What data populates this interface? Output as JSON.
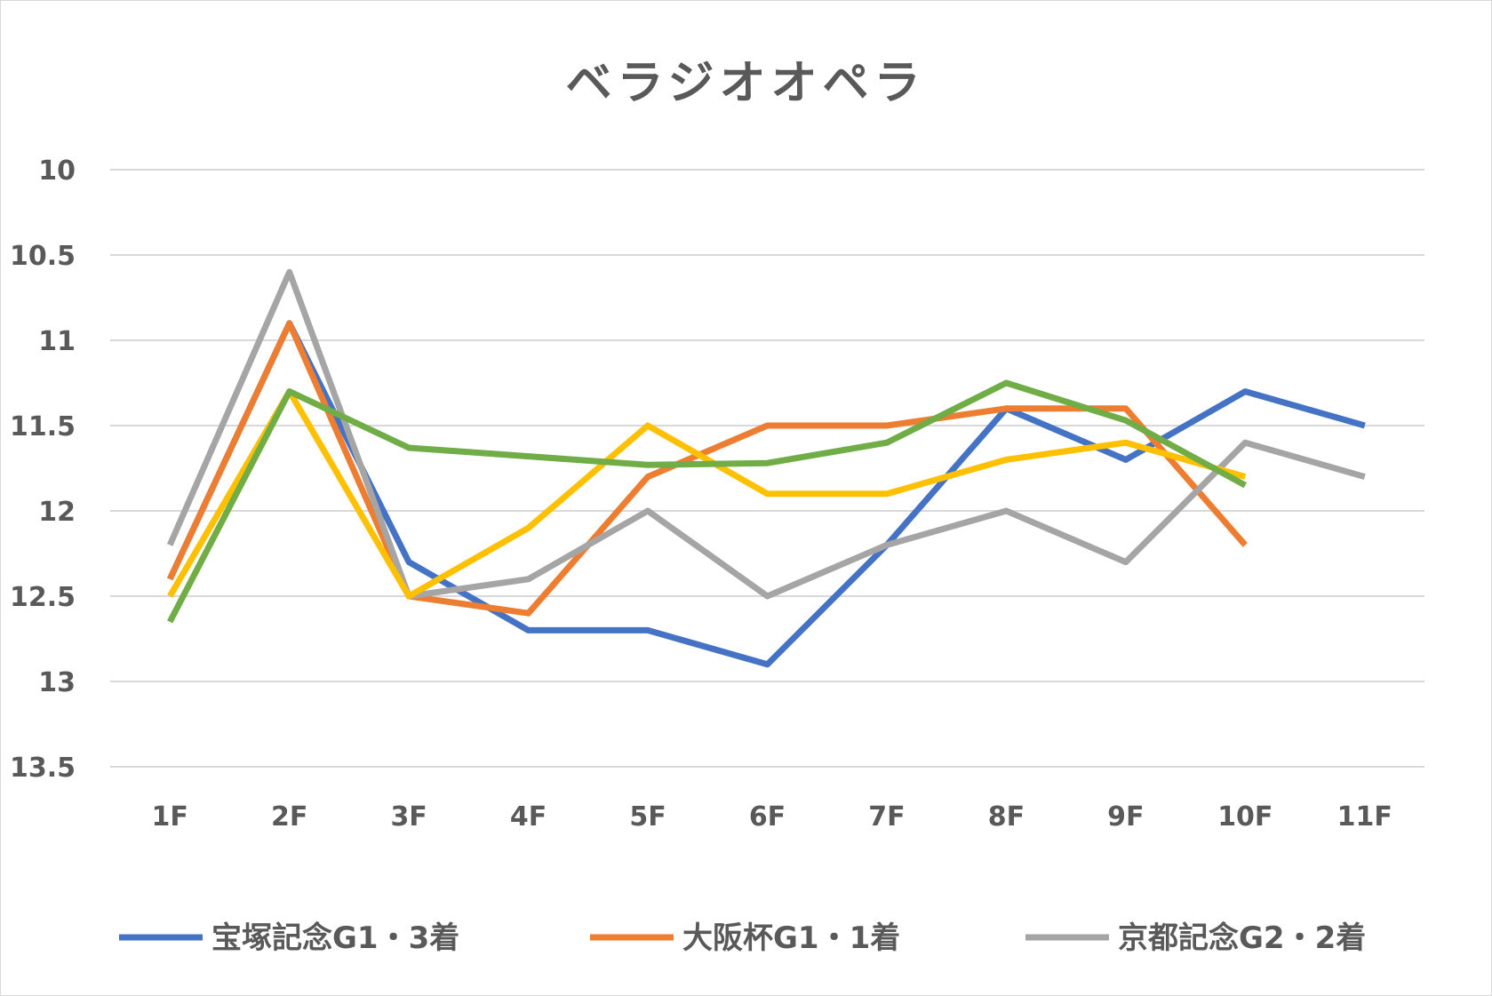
{
  "chart_data": {
    "type": "line",
    "title": "ベラジオオペラ",
    "categories": [
      "1F",
      "2F",
      "3F",
      "4F",
      "5F",
      "6F",
      "7F",
      "8F",
      "9F",
      "10F",
      "11F"
    ],
    "yticks": [
      "10",
      "10.5",
      "11",
      "11.5",
      "12",
      "12.5",
      "13",
      "13.5"
    ],
    "ylim": [
      10,
      13.5
    ],
    "y_inverted": true,
    "grid": true,
    "legend_position": "bottom",
    "series": [
      {
        "name": "宝塚記念G1・3着",
        "color": "#4472C4",
        "in_legend": true,
        "values": [
          12.4,
          10.9,
          12.3,
          12.7,
          12.7,
          12.9,
          12.2,
          11.4,
          11.7,
          11.3,
          11.5
        ]
      },
      {
        "name": "大阪杯G1・1着",
        "color": "#ED7D31",
        "in_legend": true,
        "values": [
          12.4,
          10.9,
          12.5,
          12.6,
          11.8,
          11.5,
          11.5,
          11.4,
          11.4,
          12.2,
          null
        ]
      },
      {
        "name": "京都記念G2・2着",
        "color": "#A5A5A5",
        "in_legend": true,
        "values": [
          12.2,
          10.6,
          12.5,
          12.4,
          12.0,
          12.5,
          12.2,
          12.0,
          12.3,
          11.6,
          11.8
        ]
      },
      {
        "name": "",
        "color": "#FFC000",
        "in_legend": false,
        "values": [
          12.5,
          11.3,
          12.5,
          12.1,
          11.5,
          11.9,
          11.9,
          11.7,
          11.6,
          11.8,
          null
        ]
      },
      {
        "name": "",
        "color": "#70AD47",
        "in_legend": false,
        "values": [
          12.65,
          11.3,
          11.63,
          11.68,
          11.73,
          11.72,
          11.6,
          11.25,
          11.47,
          11.85,
          null
        ]
      }
    ]
  }
}
